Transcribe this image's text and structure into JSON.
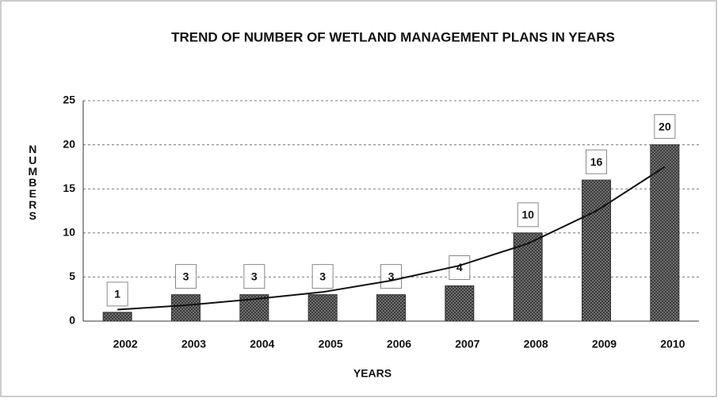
{
  "chart_data": {
    "type": "bar",
    "title": "TREND OF NUMBER OF WETLAND MANAGEMENT PLANS IN YEARS",
    "x_label": "YEARS",
    "y_label": "NUMBERS",
    "categories": [
      "2002",
      "2003",
      "2004",
      "2005",
      "2006",
      "2007",
      "2008",
      "2009",
      "2010"
    ],
    "values": [
      1,
      3,
      3,
      3,
      3,
      4,
      10,
      16,
      20
    ],
    "color": "#555555",
    "trendline": {
      "values": [
        1.3,
        1.8,
        2.5,
        3.3,
        4.6,
        6.3,
        8.8,
        12.5,
        17.5
      ],
      "color": "#111111"
    },
    "ylim": [
      0,
      25
    ],
    "yticks": [
      0,
      5,
      10,
      15,
      20,
      25
    ],
    "grid": true
  }
}
